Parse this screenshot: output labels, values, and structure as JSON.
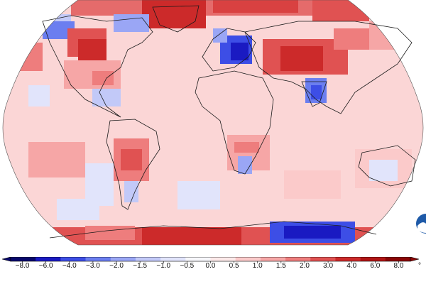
{
  "map": {
    "projection": "robinson",
    "colors": {
      "ocean_base": "#fbd6d6",
      "land_outline": "#1a1a1a"
    }
  },
  "legend": {
    "unit": "°",
    "ticks": [
      "−8.0",
      "−6.0",
      "−4.0",
      "−3.0",
      "−2.0",
      "−1.5",
      "−1.0",
      "−0.5",
      "0.0",
      "0.5",
      "1.0",
      "1.5",
      "2.0",
      "3.0",
      "4.0",
      "6.0",
      "8.0"
    ],
    "colors": [
      "#08086b",
      "#1a1ac2",
      "#3d4ee6",
      "#6b7ef0",
      "#9aa6f5",
      "#c2c9f8",
      "#e1e4fb",
      "#f7f7fb",
      "#fde9e9",
      "#fbcaca",
      "#f6a6a6",
      "#ee7d7d",
      "#e05252",
      "#cc2a2a",
      "#b01515",
      "#8a0606"
    ]
  },
  "logo": {
    "icon": "noaa-logo-icon"
  }
}
